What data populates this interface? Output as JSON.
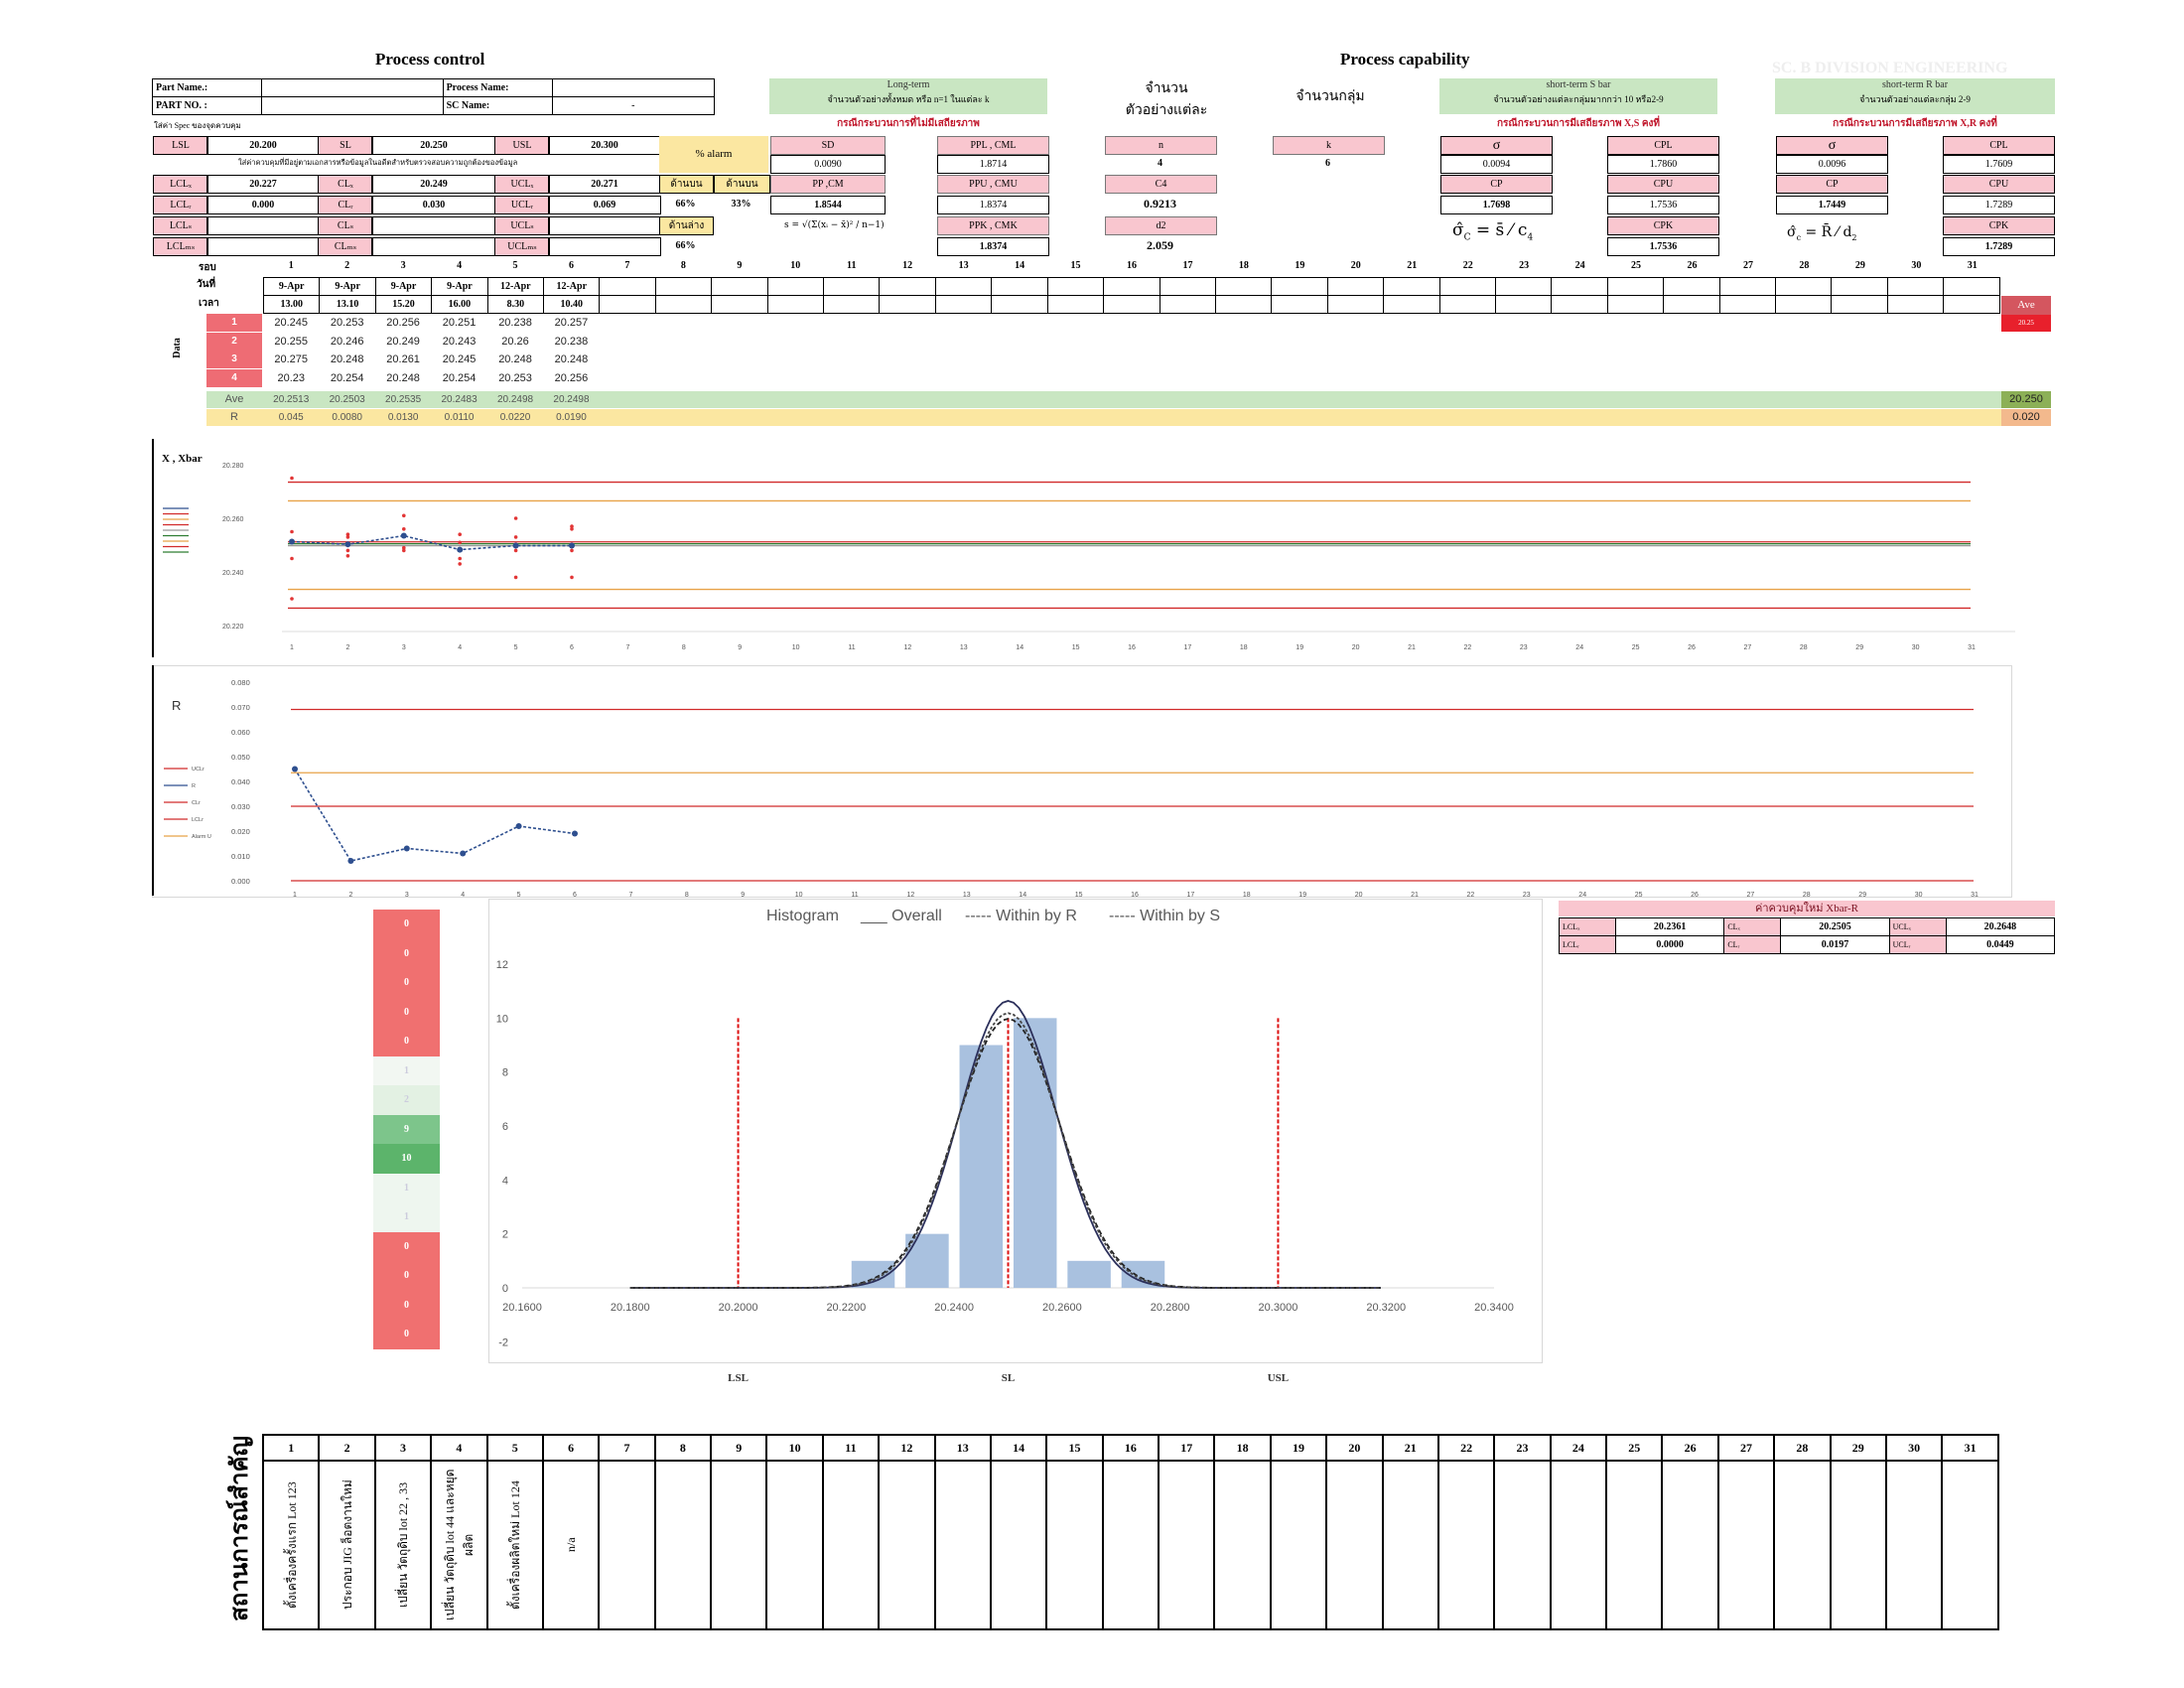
{
  "titles": {
    "process_control": "Process control",
    "process_capability": "Process capability",
    "faint": "SC. B DIVISION ENGINEERING"
  },
  "header": {
    "part_name_label": "Part Name.:",
    "part_no_label": "PART NO. :",
    "process_name_label": "Process Name:",
    "sc_name_label": "SC Name:",
    "sc_name_value": "-",
    "spec_note": "ใส่ค่า Spec ของจุดควบคุม",
    "lsl_label": "LSL",
    "lsl": "20.200",
    "sl_label": "SL",
    "sl": "20.250",
    "usl_label": "USL",
    "usl": "20.300",
    "ctrl_note": "ใส่ค่าควบคุมที่มีอยู่ตามเอกสารหรือข้อมูลในอดีตสำหรับตรวจสอบความถูกต้องของข้อมูล",
    "lclx_label": "LCLₓ",
    "lclx": "20.227",
    "clx_label": "CLₓ",
    "clx": "20.249",
    "uclx_label": "UCLₓ",
    "uclx": "20.271",
    "lclr_label": "LCLᵣ",
    "lclr": "0.000",
    "clr_label": "CLᵣ",
    "clr": "0.030",
    "uclr_label": "UCLᵣ",
    "uclr": "0.069",
    "lcls_label": "LCLₛ",
    "cls_label": "CLₛ",
    "ucls_label": "UCLₛ",
    "lclms_label": "LCLₘₛ",
    "clms_label": "CLₘₛ",
    "uclms_label": "UCLₘₛ",
    "alarm_label": "% alarm",
    "upper_label": "ด้านบน",
    "upper_label2": "ด้านบน",
    "lower_label": "ด้านล่าง",
    "alarm_a": "66%",
    "alarm_b": "33%",
    "alarm_c": "66%"
  },
  "longterm": {
    "title": "Long-term",
    "sub": "จำนวนตัวอย่างทั้งหมด หรือ n=1 ในแต่ละ k",
    "note": "กรณีกระบวนการที่ไม่มีเสถียรภาพ",
    "sd_label": "SD",
    "sd": "0.0090",
    "pp_label": "PP ,CM",
    "pp": "1.8544",
    "ppl_label": "PPL , CML",
    "ppl": "1.8714",
    "ppu_label": "PPU , CMU",
    "ppu": "1.8374",
    "ppk_label": "PPK , CMK",
    "ppk": "1.8374"
  },
  "nk": {
    "n_title": "จำนวน",
    "n_title2": "ตัวอย่างแต่ละ",
    "k_title": "จำนวนกลุ่ม",
    "n_label": "n",
    "n": "4",
    "k_label": "k",
    "k": "6",
    "c4_label": "C4",
    "c4": "0.9213",
    "d2_label": "d2",
    "d2": "2.059"
  },
  "s_bar": {
    "title": "short-term  S bar",
    "sub": "จำนวนตัวอย่างแต่ละกลุ่มมากกว่า 10 หรือ2-9",
    "note": "กรณีกระบวนการมีเสถียรภาพ X,S คงที่",
    "sigma_label": "σ",
    "sigma": "0.0094",
    "cp_label": "CP",
    "cp": "1.7698",
    "cpl_label": "CPL",
    "cpl": "1.7860",
    "cpu_label": "CPU",
    "cpu": "1.7536",
    "cpk_label": "CPK",
    "cpk": "1.7536"
  },
  "r_bar": {
    "title": "short-term  R bar",
    "sub": "จำนวนตัวอย่างแต่ละกลุ่ม 2-9",
    "note": "กรณีกระบวนการมีเสถียรภาพ X,R คงที่",
    "sigma_label": "σ",
    "sigma": "0.0096",
    "cp_label": "CP",
    "cp": "1.7449",
    "cpl_label": "CPL",
    "cpl": "1.7609",
    "cpu_label": "CPU",
    "cpu": "1.7289",
    "cpk_label": "CPK",
    "cpk": "1.7289"
  },
  "grid": {
    "round_label": "รอบ",
    "date_label": "วันที่",
    "time_label": "เวลา",
    "dates": [
      "9-Apr",
      "9-Apr",
      "9-Apr",
      "9-Apr",
      "12-Apr",
      "12-Apr"
    ],
    "times": [
      "13.00",
      "13.10",
      "15.20",
      "16.00",
      "8.30",
      "10.40"
    ],
    "data_label": "Data",
    "ave_label": "Ave",
    "r_label": "R",
    "rows": [
      [
        "20.245",
        "20.253",
        "20.256",
        "20.251",
        "20.238",
        "20.257"
      ],
      [
        "20.255",
        "20.246",
        "20.249",
        "20.243",
        "20.26",
        "20.238"
      ],
      [
        "20.275",
        "20.248",
        "20.261",
        "20.245",
        "20.248",
        "20.248"
      ],
      [
        "20.23",
        "20.254",
        "20.248",
        "20.254",
        "20.253",
        "20.256"
      ]
    ],
    "ave": [
      "20.2513",
      "20.2503",
      "20.2535",
      "20.2483",
      "20.2498",
      "20.2498"
    ],
    "r": [
      "0.045",
      "0.0080",
      "0.0130",
      "0.0110",
      "0.0220",
      "0.0190"
    ],
    "side_ave_label": "Ave",
    "side_ave_small": "20.25",
    "side_ave": "20.250",
    "side_r": "0.020"
  },
  "xbar_chart": {
    "label": "X , Xbar",
    "y_ticks": [
      "20.280",
      "20.260",
      "20.240",
      "20.220"
    ],
    "x_ticks": [
      "1",
      "2",
      "3",
      "4",
      "5",
      "6",
      "7",
      "8",
      "9",
      "10",
      "11",
      "12",
      "13",
      "14",
      "15",
      "16",
      "17",
      "18",
      "19",
      "20",
      "21",
      "22",
      "23",
      "24",
      "25",
      "26",
      "27",
      "28",
      "29",
      "30",
      "31"
    ]
  },
  "r_chart": {
    "label": "R",
    "y_ticks": [
      "0.080",
      "0.070",
      "0.060",
      "0.050",
      "0.040",
      "0.030",
      "0.020",
      "0.010",
      "0.000"
    ],
    "legend": [
      "UCLr",
      "R",
      "CLr",
      "LCLr",
      "Alarm U"
    ]
  },
  "new_ctrl": {
    "title": "ค่าควบคุมใหม่ Xbar-R",
    "lclx_label": "LCLₓ",
    "lclx": "20.2361",
    "clx_label": "CLₓ",
    "clx": "20.2505",
    "uclx_label": "UCLₓ",
    "uclx": "20.2648",
    "lclr_label": "LCLᵣ",
    "lclr": "0.0000",
    "clr_label": "CLᵣ",
    "clr": "0.0197",
    "uclr_label": "UCLᵣ",
    "uclr": "0.0449"
  },
  "heat": {
    "values": [
      "0",
      "0",
      "0",
      "0",
      "0",
      "1",
      "2",
      "9",
      "10",
      "1",
      "1",
      "0",
      "0",
      "0",
      "0"
    ],
    "colors": [
      "#f07070",
      "#f07070",
      "#f07070",
      "#f07070",
      "#f07070",
      "#f2f7f2",
      "#e3f1e3",
      "#7dc58b",
      "#5cb46b",
      "#eef6ef",
      "#eef6ef",
      "#f07070",
      "#f07070",
      "#f07070",
      "#f07070"
    ]
  },
  "chart_data": {
    "type": "bar",
    "title": "Histogram",
    "legend": [
      "___ Overall",
      "----- Within by R",
      "----- Within by S"
    ],
    "x_ticks": [
      "20.1600",
      "20.1800",
      "20.2000",
      "20.2200",
      "20.2400",
      "20.2600",
      "20.2800",
      "20.3000",
      "20.3200",
      "20.3400"
    ],
    "y_ticks": [
      "12",
      "10",
      "8",
      "6",
      "4",
      "2",
      "0",
      "-2"
    ],
    "xlim": [
      20.16,
      20.34
    ],
    "ylim": [
      -2,
      12
    ],
    "bins": [
      20.225,
      20.235,
      20.245,
      20.255,
      20.265,
      20.275
    ],
    "values": [
      1,
      2,
      9,
      10,
      1,
      1
    ],
    "bin_width": 0.008,
    "spec_lines": {
      "LSL": 20.2,
      "SL": 20.25,
      "USL": 20.3
    },
    "spec_labels": [
      "LSL",
      "SL",
      "USL"
    ],
    "curves": {
      "mean": 20.25,
      "overall_sd": 0.009,
      "within_r_sd": 0.0096,
      "within_s_sd": 0.0094,
      "scale": 0.24
    }
  },
  "events": {
    "title": "สถานการณ์สำคัญ",
    "days": [
      "1",
      "2",
      "3",
      "4",
      "5",
      "6",
      "7",
      "8",
      "9",
      "10",
      "11",
      "12",
      "13",
      "14",
      "15",
      "16",
      "17",
      "18",
      "19",
      "20",
      "21",
      "22",
      "23",
      "24",
      "25",
      "26",
      "27",
      "28",
      "29",
      "30",
      "31"
    ],
    "notes": [
      "ตั้งเครื่องครั้งแรก Lot 123",
      "ประกอบ JIG ล็อตงานใหม่",
      "เปลี่ยน วัตถุดิบ lot 22 , 33",
      "เปลี่ยน วัตถุดิบ lot 44 และหยุดผลิต",
      "ตั้งเครื่องผลิตใหม่ Lot 124",
      "n/a"
    ]
  }
}
